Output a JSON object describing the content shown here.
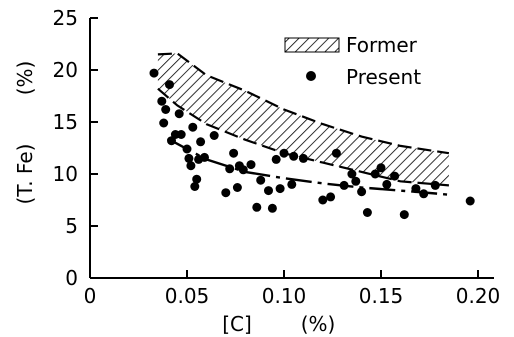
{
  "chart_data": {
    "type": "scatter",
    "xlabel": "[C]",
    "xunit": "(%)",
    "ylabel": "(T. Fe)",
    "yunit": "(%)",
    "xlim": [
      0,
      0.2
    ],
    "ylim": [
      0,
      25
    ],
    "x_ticks": [
      "0",
      "0.05",
      "0.10",
      "0.15",
      "0.20"
    ],
    "y_ticks": [
      "0",
      "5",
      "10",
      "15",
      "20",
      "25"
    ],
    "legend_position": "top-right",
    "legend": {
      "former_label": "Former",
      "present_label": "Present"
    },
    "series": [
      {
        "name": "Former",
        "style": "hatched band",
        "upper": [
          [
            0.035,
            21.5
          ],
          [
            0.045,
            21.6
          ],
          [
            0.06,
            19.5
          ],
          [
            0.08,
            18.0
          ],
          [
            0.1,
            16.2
          ],
          [
            0.12,
            14.8
          ],
          [
            0.14,
            13.6
          ],
          [
            0.16,
            12.7
          ],
          [
            0.185,
            12.0
          ]
        ],
        "lower": [
          [
            0.035,
            18.2
          ],
          [
            0.045,
            16.6
          ],
          [
            0.06,
            14.8
          ],
          [
            0.08,
            13.3
          ],
          [
            0.1,
            12.0
          ],
          [
            0.12,
            11.1
          ],
          [
            0.14,
            10.2
          ],
          [
            0.16,
            9.3
          ],
          [
            0.185,
            8.9
          ]
        ]
      },
      {
        "name": "Present",
        "style": "dots",
        "points": [
          [
            0.033,
            19.7
          ],
          [
            0.037,
            17.0
          ],
          [
            0.038,
            14.9
          ],
          [
            0.039,
            16.2
          ],
          [
            0.041,
            18.6
          ],
          [
            0.042,
            13.2
          ],
          [
            0.044,
            13.8
          ],
          [
            0.046,
            15.8
          ],
          [
            0.047,
            13.8
          ],
          [
            0.05,
            12.4
          ],
          [
            0.051,
            11.5
          ],
          [
            0.052,
            10.8
          ],
          [
            0.053,
            14.5
          ],
          [
            0.054,
            8.8
          ],
          [
            0.055,
            9.5
          ],
          [
            0.056,
            11.4
          ],
          [
            0.057,
            13.1
          ],
          [
            0.059,
            11.6
          ],
          [
            0.064,
            13.7
          ],
          [
            0.07,
            8.2
          ],
          [
            0.072,
            10.5
          ],
          [
            0.074,
            12.0
          ],
          [
            0.076,
            8.7
          ],
          [
            0.077,
            10.8
          ],
          [
            0.079,
            10.4
          ],
          [
            0.083,
            10.9
          ],
          [
            0.086,
            6.8
          ],
          [
            0.088,
            9.4
          ],
          [
            0.092,
            8.4
          ],
          [
            0.094,
            6.7
          ],
          [
            0.096,
            11.4
          ],
          [
            0.098,
            8.6
          ],
          [
            0.1,
            12.0
          ],
          [
            0.104,
            9.0
          ],
          [
            0.105,
            11.7
          ],
          [
            0.11,
            11.5
          ],
          [
            0.12,
            7.5
          ],
          [
            0.124,
            7.8
          ],
          [
            0.127,
            12.0
          ],
          [
            0.131,
            8.9
          ],
          [
            0.135,
            10.0
          ],
          [
            0.137,
            9.3
          ],
          [
            0.14,
            8.3
          ],
          [
            0.143,
            6.3
          ],
          [
            0.147,
            10.0
          ],
          [
            0.15,
            10.6
          ],
          [
            0.153,
            9.0
          ],
          [
            0.157,
            9.8
          ],
          [
            0.162,
            6.1
          ],
          [
            0.168,
            8.6
          ],
          [
            0.172,
            8.1
          ],
          [
            0.178,
            8.9
          ],
          [
            0.196,
            7.4
          ]
        ]
      }
    ],
    "present_trend": [
      [
        0.04,
        13.4
      ],
      [
        0.06,
        11.4
      ],
      [
        0.08,
        10.2
      ],
      [
        0.1,
        9.6
      ],
      [
        0.12,
        9.1
      ],
      [
        0.14,
        8.7
      ],
      [
        0.16,
        8.4
      ],
      [
        0.18,
        8.1
      ],
      [
        0.185,
        8.0
      ]
    ]
  }
}
